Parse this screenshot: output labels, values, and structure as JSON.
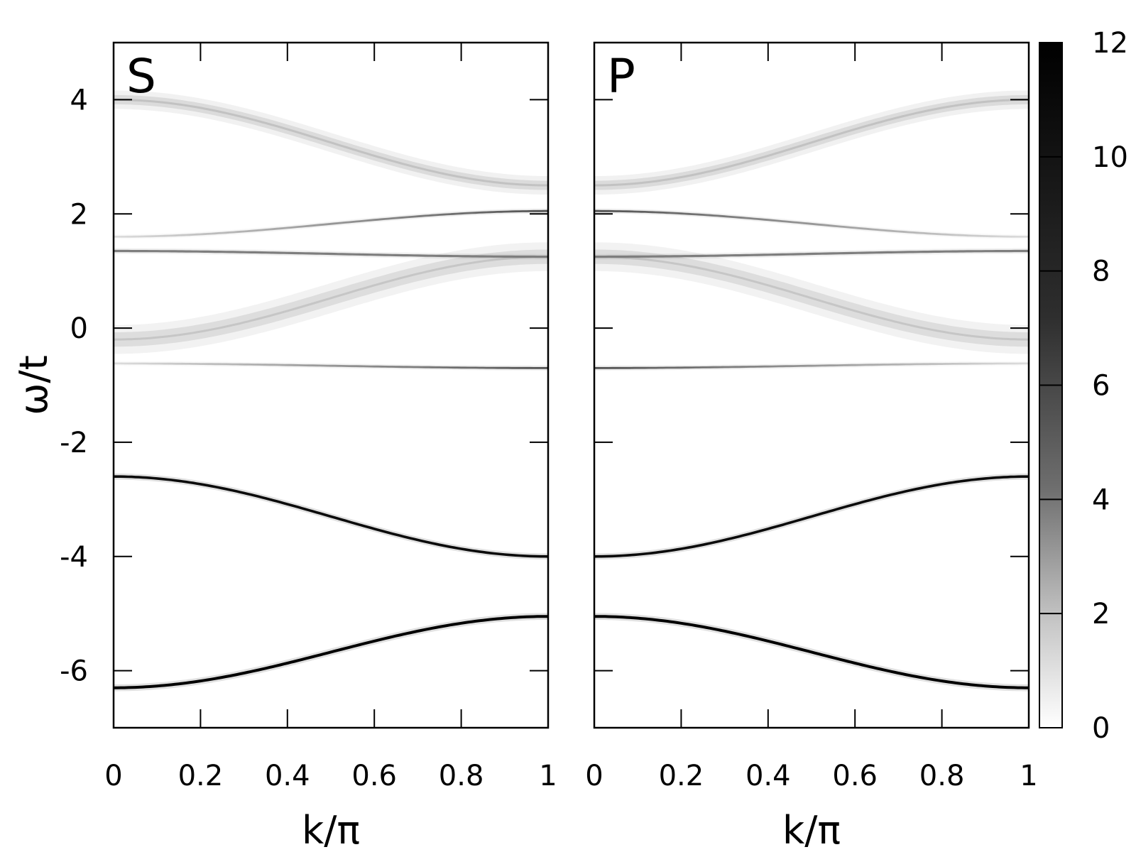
{
  "chart_data": {
    "type": "heatmap",
    "panels": [
      {
        "label": "S",
        "xlabel": "k/π",
        "ylabel": "ω/t",
        "xlim": [
          0,
          1
        ],
        "ylim": [
          -7,
          5
        ],
        "x_ticks": [
          "0",
          "0.2",
          "0.4",
          "0.6",
          "0.8",
          "1"
        ],
        "y_ticks": [
          "4",
          "2",
          "0",
          "-2",
          "-4",
          "-6"
        ],
        "bands": [
          {
            "omega_at_k0": -6.3,
            "omega_at_k1": -5.05,
            "intensity": 12,
            "width": 0.05
          },
          {
            "omega_at_k0": -2.6,
            "omega_at_k1": -4.0,
            "intensity": 11,
            "width": 0.045
          },
          {
            "omega_at_k0": -0.62,
            "omega_at_k1": -0.7,
            "intensity_at_k0": 0.3,
            "intensity_at_k1": 6,
            "width": 0.035
          },
          {
            "omega_at_k0": -0.2,
            "omega_at_k1": 1.25,
            "intensity": 1.2,
            "width": 0.28,
            "diffuse": true
          },
          {
            "omega_at_k0": 1.35,
            "omega_at_k1": 1.25,
            "intensity": 3.5,
            "width": 0.04
          },
          {
            "omega_at_k0": 1.6,
            "omega_at_k1": 2.05,
            "intensity_at_k0": 0.3,
            "intensity_at_k1": 6,
            "width": 0.035
          },
          {
            "omega_at_k0": 4.0,
            "omega_at_k1": 2.5,
            "intensity": 1.4,
            "width": 0.18,
            "diffuse": true
          }
        ]
      },
      {
        "label": "P",
        "xlabel": "k/π",
        "xlim": [
          0,
          1
        ],
        "ylim": [
          -7,
          5
        ],
        "x_ticks": [
          "0",
          "0.2",
          "0.4",
          "0.6",
          "0.8",
          "1"
        ],
        "bands": [
          {
            "omega_at_k0": -5.05,
            "omega_at_k1": -6.3,
            "intensity": 12,
            "width": 0.05
          },
          {
            "omega_at_k0": -4.0,
            "omega_at_k1": -2.6,
            "intensity": 11,
            "width": 0.045
          },
          {
            "omega_at_k0": -0.7,
            "omega_at_k1": -0.62,
            "intensity_at_k0": 6,
            "intensity_at_k1": 0.3,
            "width": 0.035
          },
          {
            "omega_at_k0": 1.25,
            "omega_at_k1": -0.2,
            "intensity": 1.2,
            "width": 0.28,
            "diffuse": true
          },
          {
            "omega_at_k0": 1.25,
            "omega_at_k1": 1.35,
            "intensity": 3.5,
            "width": 0.04
          },
          {
            "omega_at_k0": 2.05,
            "omega_at_k1": 1.6,
            "intensity_at_k0": 6,
            "intensity_at_k1": 0.3,
            "width": 0.035
          },
          {
            "omega_at_k0": 2.5,
            "omega_at_k1": 4.0,
            "intensity": 1.4,
            "width": 0.18,
            "diffuse": true
          }
        ]
      }
    ],
    "colorbar": {
      "range": [
        0,
        12
      ],
      "ticks": [
        "12",
        "10",
        "8",
        "6",
        "4",
        "2",
        "0"
      ],
      "colormap": "white-to-black"
    },
    "grid": false,
    "legend": "none"
  }
}
